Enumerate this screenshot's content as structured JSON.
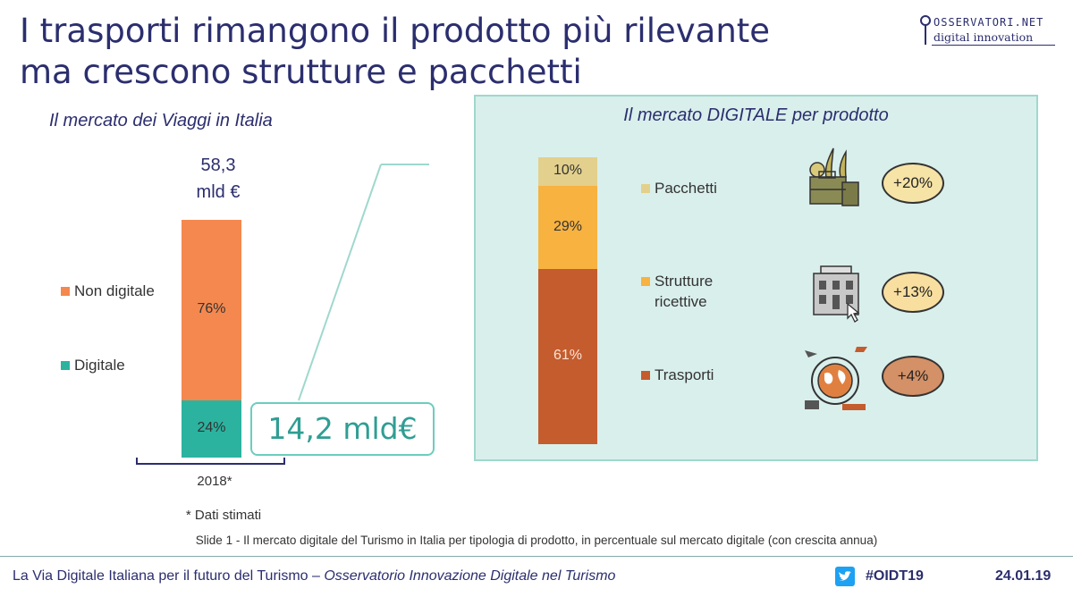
{
  "title": "I trasporti rimangono il prodotto più rilevante ma crescono strutture e pacchetti",
  "logo": {
    "top": "OSSERVATORI.NET",
    "bottom": "digital innovation"
  },
  "colors": {
    "non_digitale": "#f4884e",
    "digitale": "#2bb3a0",
    "pacchetti": "#e3d08c",
    "strutture": "#f7b240",
    "trasporti": "#c45c2e",
    "title": "#2b2e6e",
    "panel": "#d9efec",
    "callout": "#2f9e93"
  },
  "chart_data": [
    {
      "type": "bar",
      "title": "Il mercato dei Viaggi in Italia",
      "total_label_line1": "58,3",
      "total_label_line2": "mld €",
      "categories": [
        "2018*"
      ],
      "series": [
        {
          "name": "Digitale",
          "values": [
            24
          ],
          "label": "24%"
        },
        {
          "name": "Non digitale",
          "values": [
            76
          ],
          "label": "76%"
        }
      ],
      "ylim": [
        0,
        100
      ],
      "callout": "14,2 mld€",
      "footnote": "* Dati stimati"
    },
    {
      "type": "bar",
      "title": "Il mercato DIGITALE per prodotto",
      "series": [
        {
          "name": "Trasporti",
          "values": [
            61
          ],
          "label": "61%",
          "growth": "+4%",
          "icon": "world-transport-icon"
        },
        {
          "name": "Strutture ricettive",
          "name_line1": "Strutture",
          "name_line2": "ricettive",
          "values": [
            29
          ],
          "label": "29%",
          "growth": "+13%",
          "icon": "hotel-icon"
        },
        {
          "name": "Pacchetti",
          "values": [
            10
          ],
          "label": "10%",
          "growth": "+20%",
          "icon": "suitcase-icon"
        }
      ],
      "ylim": [
        0,
        100
      ]
    }
  ],
  "caption": "Slide 1 - Il mercato digitale del Turismo in Italia per tipologia di prodotto, in percentuale sul mercato digitale (con crescita annua)",
  "footer": {
    "left_plain": "La Via Digitale Italiana per il futuro del Turismo – ",
    "left_italic": "Osservatorio Innovazione Digitale nel Turismo",
    "hashtag": "#OIDT19",
    "date": "24.01.19"
  }
}
